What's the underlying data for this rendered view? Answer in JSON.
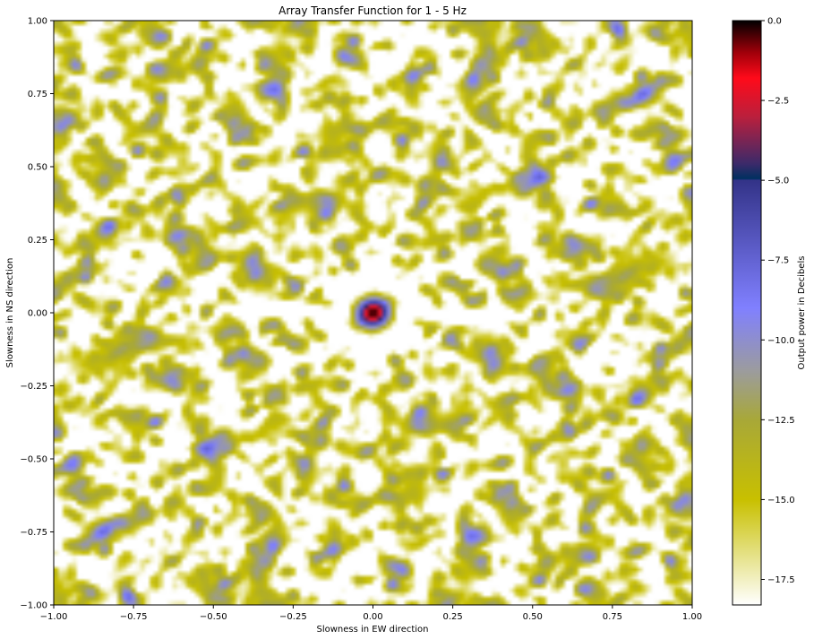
{
  "chart_data": {
    "type": "heatmap",
    "title": "Array Transfer Function for 1 - 5 Hz",
    "xlabel": "Slowness in EW direction",
    "ylabel": "Slowness in NS direction",
    "colorbar_label": "Output power in Decibels",
    "xlim": [
      -1.0,
      1.0
    ],
    "ylim": [
      -1.0,
      1.0
    ],
    "zlim": [
      -18.3,
      0.0
    ],
    "x_ticks": [
      {
        "value": -1.0,
        "label": "−1.00"
      },
      {
        "value": -0.75,
        "label": "−0.75"
      },
      {
        "value": -0.5,
        "label": "−0.50"
      },
      {
        "value": -0.25,
        "label": "−0.25"
      },
      {
        "value": 0.0,
        "label": "0.00"
      },
      {
        "value": 0.25,
        "label": "0.25"
      },
      {
        "value": 0.5,
        "label": "0.50"
      },
      {
        "value": 0.75,
        "label": "0.75"
      },
      {
        "value": 1.0,
        "label": "1.00"
      }
    ],
    "y_ticks": [
      {
        "value": 1.0,
        "label": "1.00"
      },
      {
        "value": 0.75,
        "label": "0.75"
      },
      {
        "value": 0.5,
        "label": "0.50"
      },
      {
        "value": 0.25,
        "label": "0.25"
      },
      {
        "value": 0.0,
        "label": "0.00"
      },
      {
        "value": -0.25,
        "label": "−0.25"
      },
      {
        "value": -0.5,
        "label": "−0.50"
      },
      {
        "value": -0.75,
        "label": "−0.75"
      },
      {
        "value": -1.0,
        "label": "−1.00"
      }
    ],
    "colorbar_ticks": [
      {
        "value": 0.0,
        "label": "0.0"
      },
      {
        "value": -2.5,
        "label": "−2.5"
      },
      {
        "value": -5.0,
        "label": "−5.0"
      },
      {
        "value": -7.5,
        "label": "−7.5"
      },
      {
        "value": -10.0,
        "label": "−10.0"
      },
      {
        "value": -12.5,
        "label": "−12.5"
      },
      {
        "value": -15.0,
        "label": "−15.0"
      },
      {
        "value": -17.5,
        "label": "−17.5"
      }
    ],
    "colormap": [
      {
        "value": -18.3,
        "color": "#ffffff"
      },
      {
        "value": -15.0,
        "color": "#c8c000"
      },
      {
        "value": -12.5,
        "color": "#a8a838"
      },
      {
        "value": -11.0,
        "color": "#9c9c9c"
      },
      {
        "value": -9.0,
        "color": "#8080ff"
      },
      {
        "value": -5.0,
        "color": "#333388"
      },
      {
        "value": -4.95,
        "color": "#003060"
      },
      {
        "value": -4.5,
        "color": "#3a2a6a"
      },
      {
        "value": -3.0,
        "color": "#bb1f3c"
      },
      {
        "value": -1.8,
        "color": "#ff0a1a"
      },
      {
        "value": -1.0,
        "color": "#a0000a"
      },
      {
        "value": 0.0,
        "color": "#000000"
      }
    ],
    "peak": {
      "sx": 0.0,
      "sy": 0.0,
      "value": 0.0
    },
    "grid": false
  }
}
